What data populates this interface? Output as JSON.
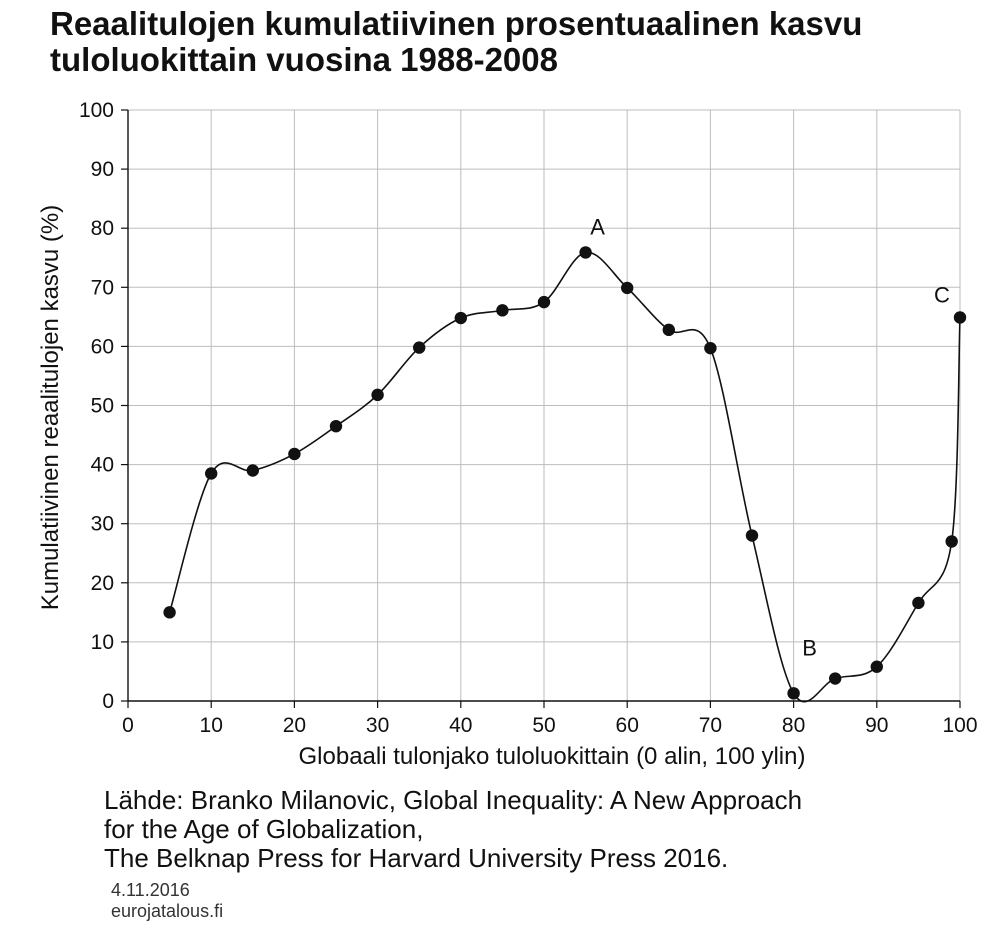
{
  "title_line1": "Reaalitulojen kumulatiivinen prosentuaalinen kasvu",
  "title_line2": "tuloluokittain vuosina 1988-2008",
  "source": {
    "line1": "Lähde: Branko Milanovic,  Global Inequality: A New Approach",
    "line2": "for the Age of Globalization,",
    "line3": "The Belknap Press for Harvard University Press 2016."
  },
  "date": "4.11.2016",
  "site": "eurojatalous.fi",
  "chart_data": {
    "type": "line",
    "title": "Reaalitulojen kumulatiivinen prosentuaalinen kasvu tuloluokittain vuosina 1988-2008",
    "xlabel": "Globaali tulonjako tuloluokittain (0 alin, 100 ylin)",
    "ylabel": "Kumulatiivinen reaalitulojen kasvu (%)",
    "xlim": [
      0,
      100
    ],
    "ylim": [
      0,
      100
    ],
    "xticks": [
      0,
      10,
      20,
      30,
      40,
      50,
      60,
      70,
      80,
      90,
      100
    ],
    "yticks": [
      0,
      10,
      20,
      30,
      40,
      50,
      60,
      70,
      80,
      90,
      100
    ],
    "grid": true,
    "smooth": true,
    "markers": "filled-circle",
    "series": [
      {
        "x": [
          5,
          10,
          15,
          20,
          25,
          30,
          35,
          40,
          45,
          50,
          55,
          60,
          65,
          70,
          75,
          80,
          85,
          90,
          95,
          99,
          100
        ],
        "y": [
          15,
          38.5,
          39,
          41.8,
          46.5,
          51.8,
          59.8,
          64.8,
          66.1,
          67.5,
          75.9,
          69.9,
          62.8,
          59.7,
          28,
          1.3,
          3.8,
          5.8,
          16.6,
          27,
          64.9
        ],
        "color": "#111111"
      }
    ],
    "annotations": [
      {
        "label": "A",
        "x": 55,
        "y": 75.9
      },
      {
        "label": "B",
        "x": 80,
        "y": 1.3
      },
      {
        "label": "C",
        "x": 100,
        "y": 64.9
      }
    ]
  }
}
